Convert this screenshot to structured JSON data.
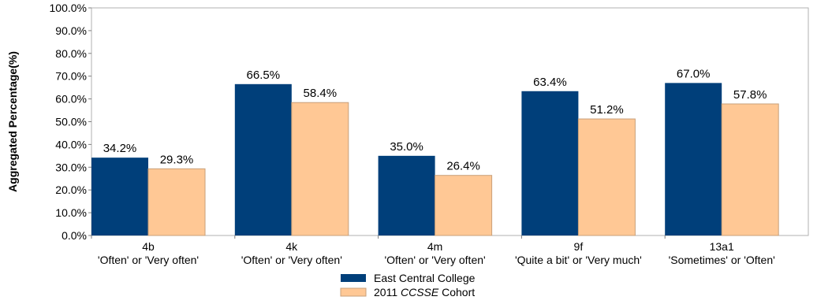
{
  "chart_data": {
    "type": "bar",
    "ylabel": "Aggregated Percentage(%)",
    "xlabel": "",
    "ylim": [
      0,
      100
    ],
    "y_ticks": [
      "0.0%",
      "10.0%",
      "20.0%",
      "30.0%",
      "40.0%",
      "50.0%",
      "60.0%",
      "70.0%",
      "80.0%",
      "90.0%",
      "100.0%"
    ],
    "grid": false,
    "legend_position": "bottom-center",
    "categories": [
      {
        "line1": "4b",
        "line2": "'Often' or 'Very often'"
      },
      {
        "line1": "4k",
        "line2": "'Often' or 'Very often'"
      },
      {
        "line1": "4m",
        "line2": "'Often' or 'Very often'"
      },
      {
        "line1": "9f",
        "line2": "'Quite a bit' or 'Very much'"
      },
      {
        "line1": "13a1",
        "line2": "'Sometimes' or 'Often'"
      }
    ],
    "series": [
      {
        "name": "East Central College",
        "color": "#003f7a",
        "values": [
          34.2,
          66.5,
          35.0,
          63.4,
          67.0
        ],
        "labels": [
          "34.2%",
          "66.5%",
          "35.0%",
          "63.4%",
          "67.0%"
        ]
      },
      {
        "name_parts": [
          "2011 ",
          "CCSSE",
          " Cohort"
        ],
        "color": "#ffc895",
        "values": [
          29.3,
          58.4,
          26.4,
          51.2,
          57.8
        ],
        "labels": [
          "29.3%",
          "58.4%",
          "26.4%",
          "51.2%",
          "57.8%"
        ]
      }
    ]
  }
}
